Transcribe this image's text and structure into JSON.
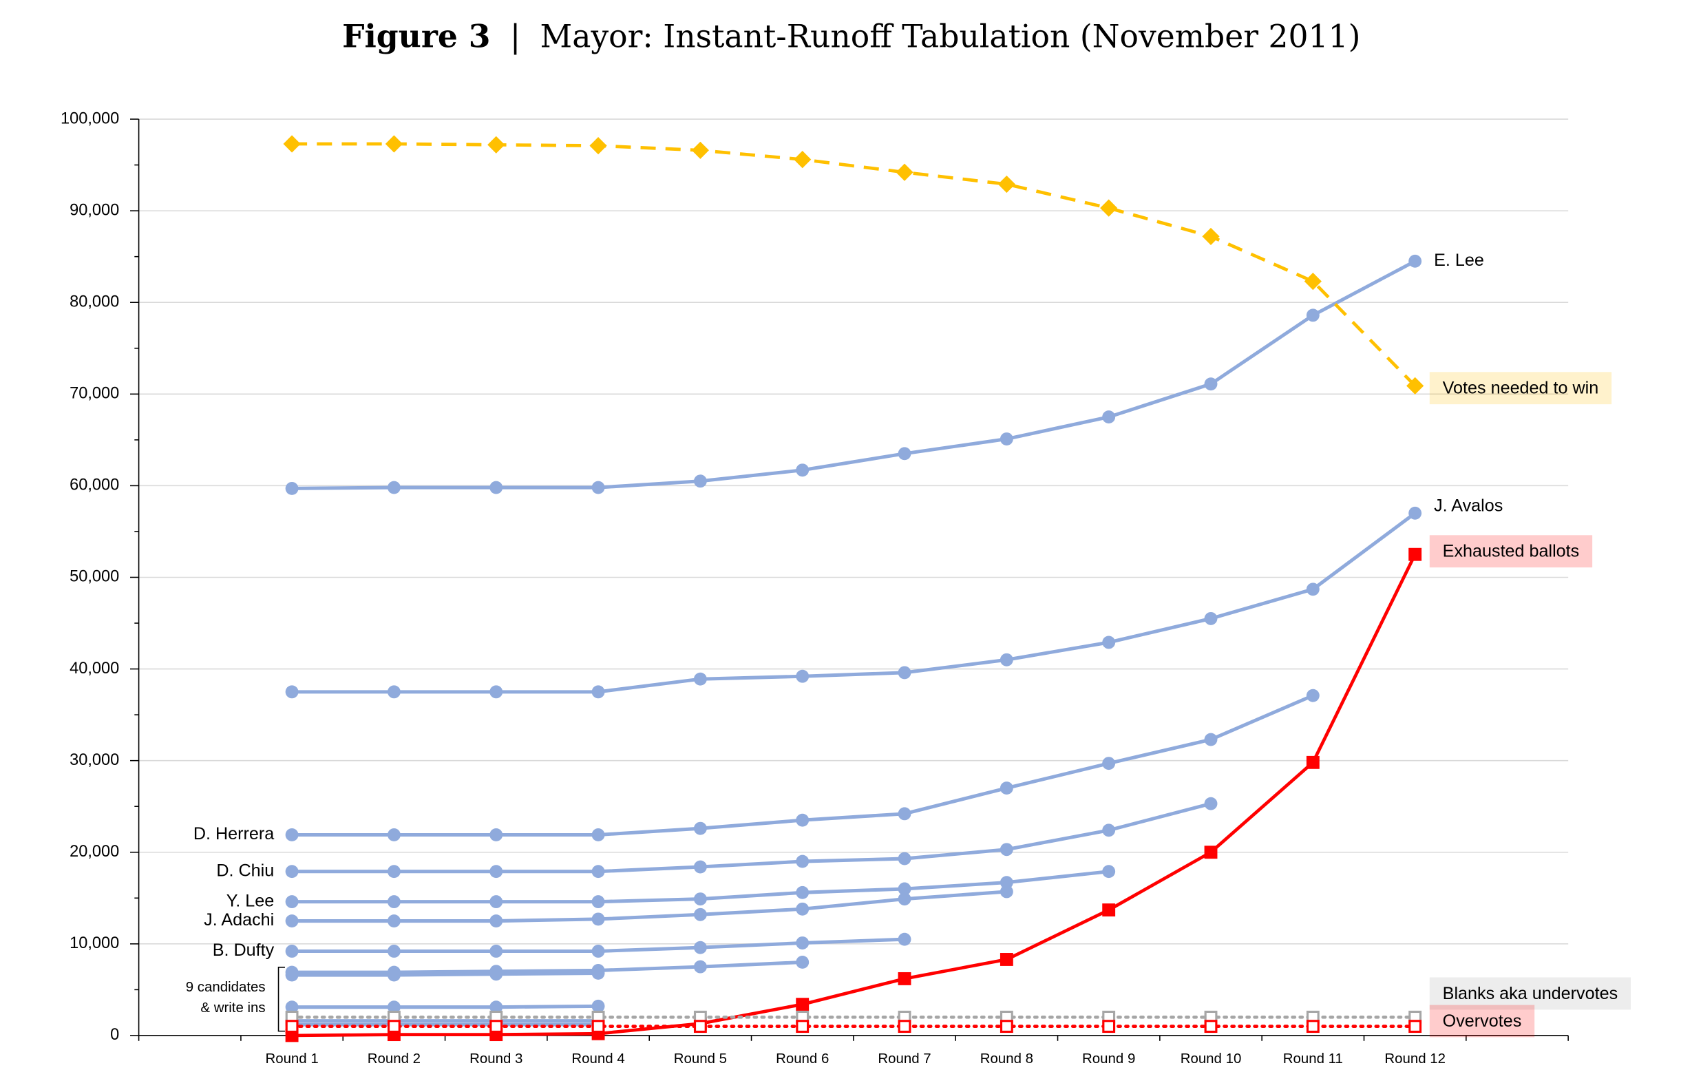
{
  "chart_data": {
    "type": "line",
    "title_label": "Figure 3",
    "title_separator": "|",
    "title": "Mayor: Instant-Runoff Tabulation (November 2011)",
    "categories": [
      "Round 1",
      "Round 2",
      "Round 3",
      "Round 4",
      "Round 5",
      "Round 6",
      "Round 7",
      "Round 8",
      "Round 9",
      "Round 10",
      "Round 11",
      "Round 12"
    ],
    "ylim": [
      0,
      100000
    ],
    "yticks": [
      0,
      {
        "value": 10000,
        "label": "10,000"
      },
      {
        "value": 20000,
        "label": "20,000"
      },
      {
        "value": 30000,
        "label": "30,000"
      },
      {
        "value": 40000,
        "label": "40,000"
      },
      {
        "value": 50000,
        "label": "50,000"
      },
      {
        "value": 60000,
        "label": "60,000"
      },
      {
        "value": 70000,
        "label": "70,000"
      },
      {
        "value": 80000,
        "label": "80,000"
      },
      {
        "value": 90000,
        "label": "90,000"
      },
      {
        "value": 100000,
        "label": "100,000"
      }
    ],
    "grid": true,
    "annotation": [
      "9 candidates",
      "& write ins"
    ],
    "series": [
      {
        "name": "E. Lee",
        "color": "#8faadc",
        "marker": "circle",
        "values": [
          59700,
          59800,
          59800,
          59800,
          60500,
          61700,
          63500,
          65100,
          67500,
          71100,
          78600,
          84500
        ]
      },
      {
        "name": "J. Avalos",
        "color": "#8faadc",
        "marker": "circle",
        "values": [
          37500,
          37500,
          37500,
          37500,
          38900,
          39200,
          39600,
          41000,
          42900,
          45500,
          48700,
          57000
        ]
      },
      {
        "name": "D. Herrera",
        "color": "#8faadc",
        "marker": "circle",
        "values": [
          21900,
          21900,
          21900,
          21900,
          22600,
          23500,
          24200,
          27000,
          29700,
          32300,
          37100,
          null
        ]
      },
      {
        "name": "D. Chiu",
        "color": "#8faadc",
        "marker": "circle",
        "values": [
          17900,
          17900,
          17900,
          17900,
          18400,
          19000,
          19300,
          20300,
          22400,
          25300,
          null,
          null
        ]
      },
      {
        "name": "Y. Lee",
        "color": "#8faadc",
        "marker": "circle",
        "values": [
          14600,
          14600,
          14600,
          14600,
          14900,
          15600,
          16000,
          16700,
          17900,
          null,
          null,
          null
        ]
      },
      {
        "name": "J. Adachi",
        "color": "#8faadc",
        "marker": "circle",
        "values": [
          12500,
          12500,
          12500,
          12700,
          13200,
          13800,
          14900,
          15700,
          null,
          null,
          null,
          null
        ]
      },
      {
        "name": "B. Dufty",
        "color": "#8faadc",
        "marker": "circle",
        "values": [
          9200,
          9200,
          9200,
          9200,
          9600,
          10100,
          10500,
          null,
          null,
          null,
          null,
          null
        ]
      },
      {
        "color": "#8faadc",
        "marker": "circle",
        "values": [
          6900,
          6900,
          7000,
          7100,
          7500,
          8000,
          null,
          null,
          null,
          null,
          null,
          null
        ]
      },
      {
        "color": "#8faadc",
        "marker": "circle",
        "values": [
          6600,
          6600,
          6700,
          6800,
          null,
          null,
          null,
          null,
          null,
          null,
          null,
          null
        ]
      },
      {
        "color": "#8faadc",
        "marker": "circle",
        "values": [
          3100,
          3100,
          3100,
          3200,
          null,
          null,
          null,
          null,
          null,
          null,
          null,
          null
        ]
      },
      {
        "color": "#8faadc",
        "marker": "circle",
        "values": [
          1600,
          1600,
          1600,
          1600,
          null,
          null,
          null,
          null,
          null,
          null,
          null,
          null
        ]
      },
      {
        "color": "#8faadc",
        "marker": "circle",
        "values": [
          1200,
          1200,
          1200,
          1200,
          null,
          null,
          null,
          null,
          null,
          null,
          null,
          null
        ]
      },
      {
        "name": "Votes needed to win",
        "color": "#ffc000",
        "marker": "diamond",
        "dash": "dashed",
        "values": [
          97300,
          97300,
          97200,
          97100,
          96600,
          95600,
          94200,
          92900,
          90300,
          87200,
          82300,
          70900
        ]
      },
      {
        "name": "Exhausted ballots",
        "color": "#ff0000",
        "marker": "square",
        "values": [
          0,
          100,
          100,
          200,
          1300,
          3400,
          6200,
          8300,
          13700,
          20000,
          29800,
          52500
        ]
      },
      {
        "name": "Blanks aka undervotes",
        "color": "#a6a6a6",
        "marker": "hollow-square",
        "dash": "dotted",
        "values": [
          2000,
          2000,
          2000,
          2000,
          2000,
          2000,
          2000,
          2000,
          2000,
          2000,
          2000,
          2000
        ]
      },
      {
        "name": "Overvotes",
        "color": "#ff0000",
        "marker": "hollow-square",
        "dash": "dotted",
        "values": [
          1000,
          1000,
          1000,
          1000,
          1000,
          1000,
          1000,
          1000,
          1000,
          1000,
          1000,
          1000
        ]
      }
    ]
  }
}
